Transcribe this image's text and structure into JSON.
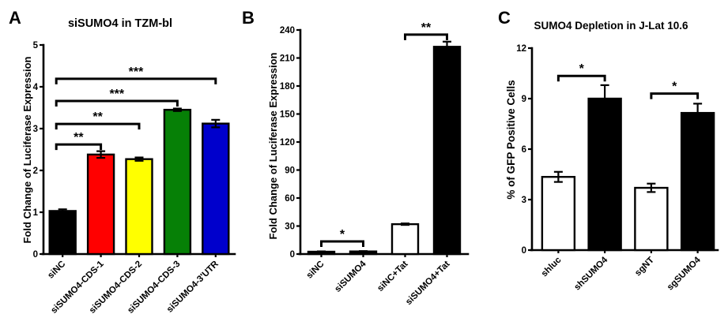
{
  "figure": {
    "background": "#FFFFFF",
    "axis_color": "#000000",
    "bar_border_color": "#000000"
  },
  "chart_data": [
    {
      "type": "bar",
      "panel_letter": "A",
      "title": "siSUMO4 in TZM-bl",
      "xlabel": "",
      "ylabel": "Fold Change of Luciferase Expression",
      "ylim": [
        0,
        5
      ],
      "yticks": [
        0,
        1,
        2,
        3,
        4,
        5
      ],
      "grid": false,
      "legend": false,
      "categories": [
        "siNC",
        "siSUMO4-CDS-1",
        "siSUMO4-CDS-2",
        "siSUMO4-CDS-3",
        "siSUMO4-3'UTR"
      ],
      "values": [
        1.03,
        2.38,
        2.27,
        3.45,
        3.12
      ],
      "errors": [
        0.04,
        0.08,
        0.04,
        0.03,
        0.09
      ],
      "bar_fills": [
        "#000000",
        "#FF0000",
        "#FFFF00",
        "#068006",
        "#0000CC"
      ],
      "significance": [
        {
          "from": 0,
          "to": 1,
          "y": 2.62,
          "label": "**"
        },
        {
          "from": 0,
          "to": 2,
          "y": 3.11,
          "label": "**"
        },
        {
          "from": 0,
          "to": 3,
          "y": 3.66,
          "label": "***"
        },
        {
          "from": 0,
          "to": 4,
          "y": 4.19,
          "label": "***"
        }
      ]
    },
    {
      "type": "bar",
      "panel_letter": "B",
      "title": "",
      "xlabel": "",
      "ylabel": "Fold Change of Luciferase Expression",
      "ylim": [
        0,
        240
      ],
      "yticks": [
        0,
        30,
        60,
        90,
        120,
        150,
        180,
        210,
        240
      ],
      "grid": false,
      "legend": false,
      "categories": [
        "siNC",
        "siSUMO4",
        "siNC+Tat",
        "siSUMO4+Tat"
      ],
      "values": [
        2.5,
        2.8,
        32,
        222
      ],
      "errors": [
        0.4,
        0.4,
        0.8,
        5.5
      ],
      "bar_fills": [
        "#000000",
        "#000000",
        "#FFFFFF",
        "#000000"
      ],
      "significance": [
        {
          "from": 0,
          "to": 1,
          "y": 13.5,
          "label": "*"
        },
        {
          "from": 2,
          "to": 3,
          "y": 235,
          "label": "**"
        }
      ]
    },
    {
      "type": "bar",
      "panel_letter": "C",
      "title": "SUMO4 Depletion in J-Lat 10.6",
      "xlabel": "",
      "ylabel": "% of GFP Positive Cells",
      "ylim": [
        0,
        12
      ],
      "yticks": [
        0,
        3,
        6,
        9,
        12
      ],
      "grid": false,
      "legend": false,
      "categories": [
        "shluc",
        "shSUMO4",
        "sgNT",
        "sgSUMO4"
      ],
      "values": [
        4.35,
        9.0,
        3.7,
        8.15
      ],
      "errors": [
        0.3,
        0.8,
        0.25,
        0.55
      ],
      "bar_fills": [
        "#FFFFFF",
        "#000000",
        "#FFFFFF",
        "#000000"
      ],
      "significance": [
        {
          "from": 0,
          "to": 1,
          "y": 10.35,
          "label": "*"
        },
        {
          "from": 2,
          "to": 3,
          "y": 9.3,
          "label": "*"
        }
      ]
    }
  ]
}
